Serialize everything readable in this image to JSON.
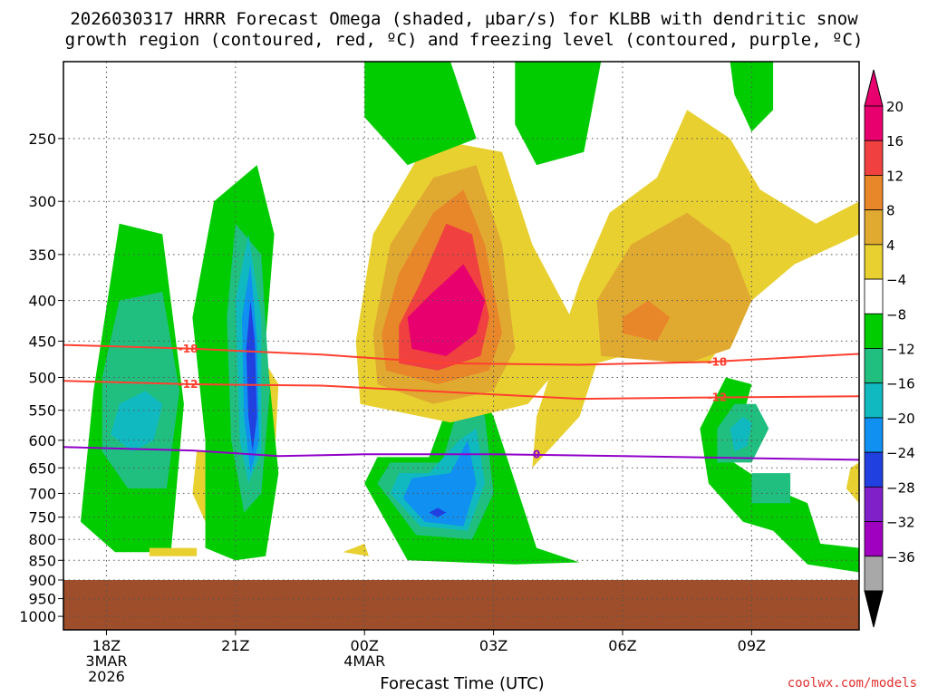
{
  "title": {
    "line1": "2026030317 HRRR Forecast Omega (shaded, µbar/s) for KLBB with dendritic snow",
    "line2": "growth region (contoured, red, ºC) and freezing level (contoured, purple, ºC)"
  },
  "credit": "coolwx.com/models",
  "colors": {
    "ground": "#9e4e2a",
    "dendritic_contour": "#ff4030",
    "freezing_contour": "#9000c8",
    "grid": "#555555",
    "frame": "#000000"
  },
  "chart_data": {
    "type": "heatmap",
    "xlabel": "Forecast Time (UTC)",
    "ylabel": "",
    "x_ticks": [
      {
        "label": "18Z",
        "sub1": "3MAR",
        "sub2": "2026",
        "hour": 0
      },
      {
        "label": "21Z",
        "sub1": "",
        "sub2": "",
        "hour": 3
      },
      {
        "label": "00Z",
        "sub1": "4MAR",
        "sub2": "",
        "hour": 6
      },
      {
        "label": "03Z",
        "sub1": "",
        "sub2": "",
        "hour": 9
      },
      {
        "label": "06Z",
        "sub1": "",
        "sub2": "",
        "hour": 12
      },
      {
        "label": "09Z",
        "sub1": "",
        "sub2": "",
        "hour": 15
      }
    ],
    "xlim": [
      -1,
      17.5
    ],
    "y_ticks": [
      250,
      300,
      350,
      400,
      450,
      500,
      550,
      600,
      650,
      700,
      750,
      800,
      850,
      900,
      950,
      1000
    ],
    "y_tick_labels": [
      "250",
      "300",
      "350",
      "400",
      "450",
      "500",
      "550",
      "600",
      "650",
      "700",
      "750",
      "800",
      "850",
      "900",
      "950",
      "1000"
    ],
    "ylim_hpa": [
      200,
      1040
    ],
    "y_scale": "log-pressure",
    "surface_pressure_hpa": 900,
    "grid": true,
    "colorbar": {
      "labels": [
        "20",
        "16",
        "12",
        "8",
        "4",
        "−4",
        "−8",
        "−12",
        "−16",
        "−20",
        "−24",
        "−28",
        "−32",
        "−36"
      ],
      "colors": [
        "#e8006e",
        "#f04040",
        "#e8862a",
        "#e0aa30",
        "#e8d030",
        "#ffffff",
        "#00cc00",
        "#20bf80",
        "#10b8c0",
        "#1090f0",
        "#2040e0",
        "#8020c8",
        "#a000c0",
        "#a8a8a8"
      ],
      "top_arrow_color": "#e8006e",
      "bottom_arrow_color": "#000000"
    },
    "contours": [
      {
        "name": "-18",
        "kind": "dendritic",
        "points": [
          [
            -1,
            455
          ],
          [
            2,
            460
          ],
          [
            5,
            468
          ],
          [
            8,
            480
          ],
          [
            11,
            482
          ],
          [
            14,
            478
          ],
          [
            17.5,
            467
          ]
        ],
        "labels": [
          [
            1.9,
            460
          ],
          [
            14.2,
            478
          ]
        ]
      },
      {
        "name": "-12",
        "kind": "dendritic",
        "points": [
          [
            -1,
            505
          ],
          [
            2,
            510
          ],
          [
            5,
            512
          ],
          [
            8,
            522
          ],
          [
            11,
            532
          ],
          [
            14,
            530
          ],
          [
            17.5,
            528
          ]
        ],
        "labels": [
          [
            1.9,
            510
          ],
          [
            14.2,
            530
          ]
        ]
      },
      {
        "name": "0",
        "kind": "freezing",
        "points": [
          [
            -1,
            612
          ],
          [
            2,
            618
          ],
          [
            4,
            628
          ],
          [
            6,
            625
          ],
          [
            9,
            625
          ],
          [
            12,
            628
          ],
          [
            15,
            632
          ],
          [
            17.5,
            635
          ]
        ],
        "labels": [
          [
            10,
            625
          ]
        ]
      }
    ],
    "omega_regions": [
      {
        "level": -8,
        "pts": [
          [
            -0.6,
            760
          ],
          [
            0.2,
            830
          ],
          [
            1.5,
            830
          ],
          [
            1.8,
            540
          ],
          [
            1.3,
            330
          ],
          [
            0.3,
            320
          ],
          [
            -0.3,
            520
          ]
        ]
      },
      {
        "level": -12,
        "pts": [
          [
            -0.1,
            620
          ],
          [
            0.5,
            690
          ],
          [
            1.4,
            690
          ],
          [
            1.7,
            520
          ],
          [
            1.3,
            390
          ],
          [
            0.3,
            400
          ],
          [
            -0.1,
            500
          ]
        ]
      },
      {
        "level": -16,
        "pts": [
          [
            0.1,
            590
          ],
          [
            0.6,
            620
          ],
          [
            1.1,
            600
          ],
          [
            1.3,
            540
          ],
          [
            0.9,
            520
          ],
          [
            0.3,
            540
          ]
        ]
      },
      {
        "level": 4,
        "pts": [
          [
            3.3,
            650
          ],
          [
            3.9,
            650
          ],
          [
            4.0,
            510
          ],
          [
            3.6,
            470
          ],
          [
            3.2,
            540
          ]
        ]
      },
      {
        "level": 4,
        "pts": [
          [
            2.0,
            700
          ],
          [
            2.3,
            760
          ],
          [
            2.6,
            700
          ],
          [
            2.5,
            620
          ],
          [
            2.1,
            620
          ]
        ]
      },
      {
        "level": 4,
        "pts": [
          [
            1.0,
            840
          ],
          [
            2.1,
            840
          ],
          [
            2.1,
            820
          ],
          [
            1.0,
            820
          ]
        ]
      },
      {
        "level": -8,
        "pts": [
          [
            2.3,
            820
          ],
          [
            3.0,
            850
          ],
          [
            3.7,
            840
          ],
          [
            4.0,
            660
          ],
          [
            3.7,
            450
          ],
          [
            3.9,
            330
          ],
          [
            3.5,
            270
          ],
          [
            2.5,
            300
          ],
          [
            2.0,
            420
          ],
          [
            2.3,
            600
          ]
        ]
      },
      {
        "level": -12,
        "pts": [
          [
            3.2,
            740
          ],
          [
            3.6,
            700
          ],
          [
            3.8,
            520
          ],
          [
            3.6,
            350
          ],
          [
            3.0,
            320
          ],
          [
            2.8,
            420
          ],
          [
            2.9,
            600
          ]
        ]
      },
      {
        "level": -16,
        "pts": [
          [
            3.3,
            680
          ],
          [
            3.6,
            620
          ],
          [
            3.6,
            420
          ],
          [
            3.3,
            330
          ],
          [
            3.0,
            400
          ],
          [
            3.1,
            600
          ]
        ]
      },
      {
        "level": -20,
        "pts": [
          [
            3.35,
            660
          ],
          [
            3.55,
            600
          ],
          [
            3.5,
            450
          ],
          [
            3.35,
            360
          ],
          [
            3.15,
            420
          ],
          [
            3.2,
            560
          ]
        ]
      },
      {
        "level": -24,
        "pts": [
          [
            3.4,
            620
          ],
          [
            3.5,
            560
          ],
          [
            3.45,
            450
          ],
          [
            3.35,
            400
          ],
          [
            3.25,
            460
          ],
          [
            3.3,
            560
          ]
        ]
      },
      {
        "level": -8,
        "pts": [
          [
            6.0,
            680
          ],
          [
            7.0,
            850
          ],
          [
            9.5,
            860
          ],
          [
            11.0,
            855
          ],
          [
            10.0,
            820
          ],
          [
            9.0,
            560
          ],
          [
            8.3,
            480
          ],
          [
            7.5,
            630
          ],
          [
            6.3,
            630
          ]
        ]
      },
      {
        "level": -12,
        "pts": [
          [
            6.3,
            680
          ],
          [
            7.2,
            790
          ],
          [
            8.5,
            800
          ],
          [
            9.0,
            700
          ],
          [
            8.8,
            560
          ],
          [
            8.3,
            520
          ],
          [
            7.8,
            640
          ],
          [
            6.6,
            640
          ]
        ]
      },
      {
        "level": -16,
        "pts": [
          [
            6.6,
            700
          ],
          [
            7.3,
            770
          ],
          [
            8.4,
            780
          ],
          [
            8.8,
            680
          ],
          [
            8.6,
            580
          ],
          [
            8.2,
            600
          ],
          [
            7.5,
            660
          ],
          [
            6.8,
            660
          ]
        ]
      },
      {
        "level": -20,
        "pts": [
          [
            6.9,
            710
          ],
          [
            7.4,
            760
          ],
          [
            8.3,
            770
          ],
          [
            8.6,
            680
          ],
          [
            8.4,
            600
          ],
          [
            8.0,
            660
          ],
          [
            7.1,
            670
          ]
        ]
      },
      {
        "level": -24,
        "pts": [
          [
            7.5,
            740
          ],
          [
            7.7,
            750
          ],
          [
            7.9,
            740
          ],
          [
            7.7,
            730
          ]
        ]
      },
      {
        "level": 4,
        "pts": [
          [
            5.5,
            830
          ],
          [
            6.1,
            840
          ],
          [
            6.0,
            810
          ]
        ]
      },
      {
        "level": 4,
        "pts": [
          [
            5.9,
            540
          ],
          [
            8.0,
            570
          ],
          [
            9.8,
            540
          ],
          [
            10.6,
            480
          ],
          [
            10.8,
            420
          ],
          [
            9.9,
            340
          ],
          [
            9.2,
            260
          ],
          [
            7.5,
            250
          ],
          [
            6.2,
            330
          ],
          [
            5.8,
            450
          ]
        ]
      },
      {
        "level": 8,
        "pts": [
          [
            6.3,
            510
          ],
          [
            7.6,
            540
          ],
          [
            9.0,
            520
          ],
          [
            9.5,
            460
          ],
          [
            9.2,
            340
          ],
          [
            8.6,
            270
          ],
          [
            7.6,
            280
          ],
          [
            6.6,
            340
          ],
          [
            6.2,
            440
          ]
        ]
      },
      {
        "level": 12,
        "pts": [
          [
            6.5,
            490
          ],
          [
            7.7,
            510
          ],
          [
            8.9,
            490
          ],
          [
            9.2,
            440
          ],
          [
            8.8,
            340
          ],
          [
            8.3,
            290
          ],
          [
            7.6,
            310
          ],
          [
            6.8,
            370
          ],
          [
            6.4,
            440
          ]
        ]
      },
      {
        "level": 16,
        "pts": [
          [
            6.8,
            480
          ],
          [
            7.7,
            490
          ],
          [
            8.7,
            470
          ],
          [
            8.9,
            420
          ],
          [
            8.5,
            330
          ],
          [
            7.9,
            320
          ],
          [
            7.3,
            380
          ],
          [
            6.8,
            430
          ]
        ]
      },
      {
        "level": 20,
        "pts": [
          [
            7.1,
            460
          ],
          [
            7.9,
            470
          ],
          [
            8.6,
            440
          ],
          [
            8.8,
            400
          ],
          [
            8.3,
            360
          ],
          [
            7.6,
            390
          ],
          [
            7.0,
            420
          ]
        ]
      },
      {
        "level": 4,
        "pts": [
          [
            9.9,
            650
          ],
          [
            11.0,
            560
          ],
          [
            11.4,
            480
          ],
          [
            12.0,
            470
          ],
          [
            14.0,
            480
          ],
          [
            15.0,
            400
          ],
          [
            16.0,
            360
          ],
          [
            17.0,
            340
          ],
          [
            17.5,
            330
          ],
          [
            17.5,
            300
          ],
          [
            16.5,
            320
          ],
          [
            15.2,
            290
          ],
          [
            14.5,
            250
          ],
          [
            13.5,
            230
          ],
          [
            12.8,
            280
          ],
          [
            11.7,
            310
          ],
          [
            11.0,
            380
          ],
          [
            10.4,
            480
          ],
          [
            10.0,
            560
          ]
        ]
      },
      {
        "level": 8,
        "pts": [
          [
            11.5,
            470
          ],
          [
            13.5,
            480
          ],
          [
            14.5,
            460
          ],
          [
            15.0,
            400
          ],
          [
            14.5,
            340
          ],
          [
            13.5,
            310
          ],
          [
            12.2,
            340
          ],
          [
            11.4,
            400
          ]
        ]
      },
      {
        "level": 12,
        "pts": [
          [
            12.0,
            440
          ],
          [
            12.8,
            450
          ],
          [
            13.1,
            420
          ],
          [
            12.6,
            400
          ],
          [
            12.0,
            420
          ]
        ]
      },
      {
        "level": -8,
        "pts": [
          [
            14.2,
            620
          ],
          [
            15.5,
            690
          ],
          [
            16.3,
            720
          ],
          [
            16.6,
            810
          ],
          [
            17.5,
            820
          ],
          [
            17.5,
            880
          ],
          [
            16.3,
            860
          ],
          [
            15.5,
            780
          ],
          [
            14.8,
            760
          ],
          [
            14.0,
            680
          ],
          [
            13.8,
            580
          ],
          [
            14.4,
            500
          ],
          [
            15.0,
            510
          ],
          [
            14.8,
            560
          ]
        ]
      },
      {
        "level": -12,
        "pts": [
          [
            14.2,
            640
          ],
          [
            15.0,
            640
          ],
          [
            15.4,
            580
          ],
          [
            15.1,
            540
          ],
          [
            14.6,
            540
          ],
          [
            14.2,
            580
          ]
        ]
      },
      {
        "level": -12,
        "pts": [
          [
            15.0,
            660
          ],
          [
            15.9,
            660
          ],
          [
            15.9,
            720
          ],
          [
            15.0,
            720
          ]
        ]
      },
      {
        "level": -16,
        "pts": [
          [
            14.6,
            620
          ],
          [
            14.9,
            610
          ],
          [
            15.0,
            570
          ],
          [
            14.8,
            560
          ],
          [
            14.5,
            580
          ]
        ]
      },
      {
        "level": 4,
        "pts": [
          [
            17.2,
            690
          ],
          [
            17.5,
            720
          ],
          [
            17.5,
            640
          ],
          [
            17.3,
            650
          ]
        ]
      },
      {
        "level": -8,
        "pts": [
          [
            6.0,
            200
          ],
          [
            8.0,
            200
          ],
          [
            8.6,
            250
          ],
          [
            7.0,
            270
          ],
          [
            6.0,
            235
          ]
        ]
      },
      {
        "level": -8,
        "pts": [
          [
            9.5,
            200
          ],
          [
            11.5,
            200
          ],
          [
            11.1,
            260
          ],
          [
            10.0,
            270
          ],
          [
            9.5,
            240
          ]
        ]
      },
      {
        "level": -8,
        "pts": [
          [
            14.5,
            200
          ],
          [
            15.5,
            200
          ],
          [
            15.5,
            230
          ],
          [
            15.0,
            245
          ],
          [
            14.6,
            220
          ]
        ]
      }
    ]
  }
}
